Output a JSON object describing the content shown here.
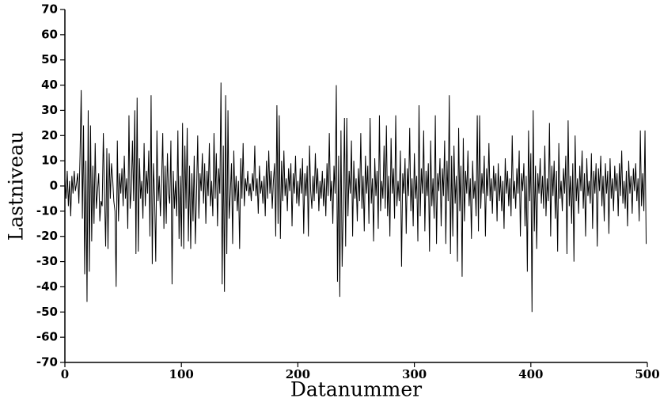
{
  "chart_data": {
    "type": "line",
    "xlabel": "Datanummer",
    "ylabel": "Lastniveau",
    "xlim": [
      0,
      500
    ],
    "xticks": [
      0,
      100,
      200,
      300,
      400,
      500
    ],
    "ylim": [
      -70,
      70
    ],
    "yticks": [
      -70,
      -60,
      -50,
      -40,
      -30,
      -20,
      -10,
      0,
      10,
      20,
      30,
      40,
      50,
      60,
      70
    ],
    "color": "#000000",
    "values": [
      3,
      -5,
      6,
      -8,
      2,
      -12,
      4,
      -3,
      6,
      -2,
      1,
      5,
      -7,
      12,
      38,
      -13,
      24,
      -35,
      10,
      -46,
      30,
      -34,
      24,
      -22,
      8,
      -15,
      17,
      -9,
      -2,
      5,
      -14,
      -6,
      -8,
      21,
      -3,
      -24,
      15,
      -25,
      13,
      -5,
      9,
      3,
      -6,
      -10,
      -40,
      18,
      -14,
      5,
      -3,
      7,
      -8,
      12,
      -5,
      3,
      -17,
      28,
      -9,
      -2,
      18,
      -6,
      30,
      -27,
      35,
      -26,
      11,
      -5,
      2,
      -13,
      17,
      -8,
      6,
      -3,
      14,
      -20,
      36,
      -31,
      9,
      -4,
      -30,
      22,
      -6,
      4,
      -12,
      2,
      21,
      -17,
      8,
      -15,
      13,
      -3,
      -7,
      18,
      -39,
      6,
      -9,
      2,
      -12,
      22,
      -21,
      4,
      -24,
      25,
      -25,
      16,
      -9,
      23,
      -22,
      8,
      -25,
      5,
      -14,
      12,
      -23,
      -3,
      20,
      -13,
      5,
      -2,
      13,
      -7,
      9,
      -15,
      6,
      -4,
      17,
      -8,
      2,
      -12,
      21,
      -5,
      13,
      -16,
      7,
      -3,
      41,
      -39,
      16,
      -42,
      36,
      -27,
      30,
      -13,
      -3,
      9,
      -23,
      14,
      -6,
      4,
      -10,
      2,
      -25,
      11,
      -5,
      17,
      -8,
      3,
      -2,
      6,
      -4,
      1,
      -6,
      5,
      -2,
      16,
      -4,
      3,
      -11,
      8,
      -3,
      2,
      -7,
      4,
      -12,
      10,
      -5,
      14,
      -3,
      6,
      -9,
      2,
      9,
      -20,
      32,
      -15,
      28,
      -21,
      10,
      -6,
      14,
      -4,
      3,
      -10,
      7,
      -2,
      9,
      -16,
      5,
      -3,
      12,
      -7,
      2,
      -8,
      7,
      -3,
      11,
      -19,
      5,
      -4,
      8,
      -20,
      16,
      -2,
      -9,
      4,
      -6,
      13,
      -3,
      7,
      -10,
      2,
      -5,
      6,
      -8,
      3,
      -12,
      9,
      -4,
      21,
      -6,
      2,
      -15,
      8,
      -3,
      40,
      -38,
      12,
      -44,
      22,
      -32,
      -9,
      27,
      -24,
      27,
      -12,
      6,
      -3,
      18,
      -20,
      10,
      -5,
      3,
      -14,
      7,
      -6,
      21,
      -9,
      4,
      -18,
      12,
      -3,
      8,
      -15,
      27,
      -7,
      3,
      -22,
      11,
      -4,
      6,
      -17,
      28,
      -10,
      2,
      -5,
      16,
      -9,
      24,
      -12,
      4,
      -20,
      19,
      -3,
      7,
      -13,
      28,
      -8,
      2,
      -6,
      14,
      -32,
      5,
      -3,
      11,
      -19,
      7,
      -4,
      23,
      -10,
      3,
      -16,
      13,
      -5,
      4,
      -22,
      32,
      -12,
      7,
      -3,
      22,
      -18,
      6,
      -4,
      9,
      -26,
      18,
      -8,
      3,
      -13,
      28,
      -23,
      5,
      -2,
      11,
      -16,
      7,
      -4,
      18,
      -23,
      10,
      -6,
      36,
      -27,
      12,
      -20,
      16,
      -7,
      4,
      -30,
      23,
      -10,
      8,
      -36,
      19,
      -14,
      6,
      -3,
      14,
      -8,
      3,
      -21,
      10,
      -5,
      2,
      -12,
      28,
      -18,
      28,
      -9,
      5,
      -3,
      12,
      -20,
      7,
      -4,
      17,
      -6,
      3,
      -11,
      8,
      -2,
      5,
      -14,
      9,
      -6,
      4,
      -10,
      2,
      -17,
      11,
      -3,
      6,
      -8,
      3,
      -12,
      20,
      -5,
      2,
      -9,
      7,
      -3,
      14,
      -20,
      5,
      -2,
      9,
      -16,
      4,
      -34,
      22,
      -6,
      13,
      -50,
      30,
      -18,
      8,
      -25,
      5,
      -3,
      11,
      -7,
      4,
      -9,
      16,
      -12,
      3,
      -6,
      25,
      -20,
      8,
      -4,
      10,
      -13,
      6,
      -26,
      17,
      -5,
      2,
      -10,
      7,
      -3,
      12,
      -27,
      26,
      -8,
      4,
      -15,
      9,
      -30,
      20,
      -6,
      3,
      -11,
      8,
      -2,
      14,
      -9,
      5,
      -20,
      11,
      -4,
      2,
      -7,
      13,
      -17,
      6,
      -3,
      9,
      -24,
      7,
      -2,
      12,
      -8,
      4,
      -14,
      9,
      -3,
      6,
      -19,
      11,
      -5,
      3,
      -10,
      8,
      -2,
      5,
      -12,
      9,
      -4,
      14,
      -7,
      2,
      -9,
      6,
      -16,
      10,
      -3,
      4,
      -11,
      7,
      -2,
      9,
      -6,
      3,
      -14,
      22,
      -8,
      5,
      -10,
      22,
      -23
    ]
  }
}
